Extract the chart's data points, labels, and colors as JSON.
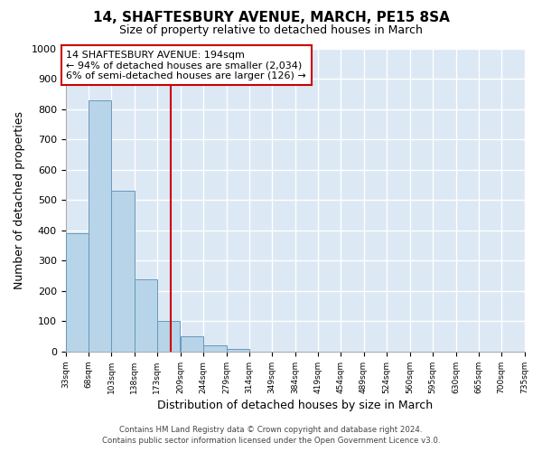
{
  "title": "14, SHAFTESBURY AVENUE, MARCH, PE15 8SA",
  "subtitle": "Size of property relative to detached houses in March",
  "xlabel": "Distribution of detached houses by size in March",
  "ylabel": "Number of detached properties",
  "bar_color": "#b8d4e8",
  "bar_edge_color": "#6699bb",
  "fig_background": "#ffffff",
  "ax_background": "#dce8f4",
  "grid_color": "#ffffff",
  "bins": [
    33,
    68,
    103,
    138,
    173,
    209,
    244,
    279,
    314,
    349,
    384,
    419,
    454,
    489,
    524,
    560,
    595,
    630,
    665,
    700,
    735
  ],
  "bin_labels": [
    "33sqm",
    "68sqm",
    "103sqm",
    "138sqm",
    "173sqm",
    "209sqm",
    "244sqm",
    "279sqm",
    "314sqm",
    "349sqm",
    "384sqm",
    "419sqm",
    "454sqm",
    "489sqm",
    "524sqm",
    "560sqm",
    "595sqm",
    "630sqm",
    "665sqm",
    "700sqm",
    "735sqm"
  ],
  "counts": [
    390,
    830,
    530,
    240,
    100,
    50,
    20,
    10,
    0,
    0,
    0,
    0,
    0,
    0,
    0,
    0,
    0,
    0,
    0,
    0
  ],
  "property_size": 194,
  "vline_color": "#cc0000",
  "annotation_line1": "14 SHAFTESBURY AVENUE: 194sqm",
  "annotation_line2": "← 94% of detached houses are smaller (2,034)",
  "annotation_line3": "6% of semi-detached houses are larger (126) →",
  "annotation_box_facecolor": "#ffffff",
  "annotation_box_edgecolor": "#cc0000",
  "ylim": [
    0,
    1000
  ],
  "yticks": [
    0,
    100,
    200,
    300,
    400,
    500,
    600,
    700,
    800,
    900,
    1000
  ],
  "footer1": "Contains HM Land Registry data © Crown copyright and database right 2024.",
  "footer2": "Contains public sector information licensed under the Open Government Licence v3.0."
}
